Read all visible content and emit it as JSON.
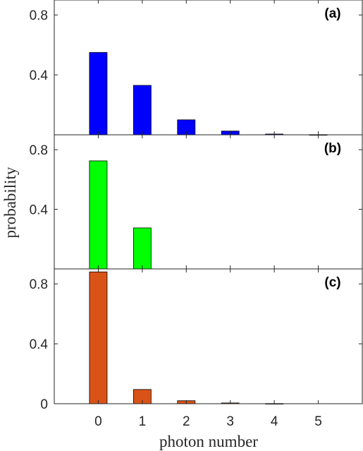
{
  "chart_data": [
    {
      "type": "bar",
      "panel_label": "(a)",
      "categories": [
        "0",
        "1",
        "2",
        "3",
        "4",
        "5"
      ],
      "values": [
        0.55,
        0.33,
        0.1,
        0.025,
        0.005,
        0.001
      ],
      "color": "#0000ff",
      "ylim": [
        0,
        0.9
      ],
      "yticks": [
        0,
        0.4,
        0.8
      ],
      "ytick_labels": [
        "",
        "0.4",
        "0.8"
      ],
      "grid": false
    },
    {
      "type": "bar",
      "panel_label": "(b)",
      "categories": [
        "0",
        "1",
        "2",
        "3",
        "4",
        "5"
      ],
      "values": [
        0.725,
        0.275,
        0,
        0,
        0,
        0
      ],
      "color": "#00ff00",
      "ylim": [
        0,
        0.9
      ],
      "yticks": [
        0,
        0.4,
        0.8
      ],
      "ytick_labels": [
        "",
        "0.4",
        "0.8"
      ],
      "grid": false
    },
    {
      "type": "bar",
      "panel_label": "(c)",
      "categories": [
        "0",
        "1",
        "2",
        "3",
        "4",
        "5"
      ],
      "values": [
        0.88,
        0.095,
        0.02,
        0.005,
        0.001,
        0
      ],
      "color": "#d95319",
      "ylim": [
        0,
        0.9
      ],
      "yticks": [
        0,
        0.4,
        0.8
      ],
      "ytick_labels": [
        "0",
        "0.4",
        "0.8"
      ],
      "grid": false
    }
  ],
  "xaxis": {
    "label": "photon number",
    "tick_labels": [
      "0",
      "1",
      "2",
      "3",
      "4",
      "5"
    ],
    "xlim": [
      -1,
      6
    ]
  },
  "yaxis": {
    "label": "probability"
  }
}
